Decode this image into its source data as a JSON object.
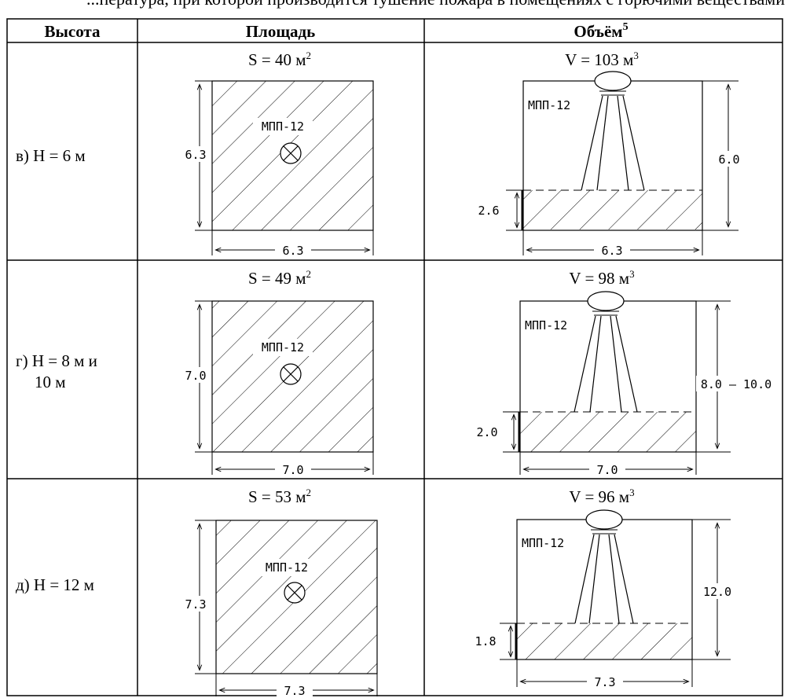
{
  "header": {
    "clipped_text": "...пература, при которой производится тушение пожара в помещениях с горючими веществами"
  },
  "columns": {
    "height": "Высота",
    "area": "Площадь",
    "volume": "Объём",
    "volume_sup": "5"
  },
  "rows": [
    {
      "label_line1": "в) Н = 6 м",
      "label_line2": "",
      "area_formula": "S = 40 м",
      "area_sup": "2",
      "volume_formula": "V = 103 м",
      "volume_sup": "3",
      "area_side": "6.3",
      "area_width": "6.3",
      "device": "МПП-12",
      "liquid_level": "2.6",
      "room_height": "6.0",
      "room_width": "6.3"
    },
    {
      "label_line1": "г) Н = 8 м и",
      "label_line2": "10 м",
      "area_formula": "S = 49 м",
      "area_sup": "2",
      "volume_formula": "V = 98 м",
      "volume_sup": "3",
      "area_side": "7.0",
      "area_width": "7.0",
      "device": "МПП-12",
      "liquid_level": "2.0",
      "room_height": "8.0 – 10.0",
      "room_width": "7.0"
    },
    {
      "label_line1": "д) Н = 12 м",
      "label_line2": "",
      "area_formula": "S = 53 м",
      "area_sup": "2",
      "volume_formula": "V = 96 м",
      "volume_sup": "3",
      "area_side": "7.3",
      "area_width": "7.3",
      "device": "МПП-12",
      "liquid_level": "1.8",
      "room_height": "12.0",
      "room_width": "7.3"
    }
  ]
}
